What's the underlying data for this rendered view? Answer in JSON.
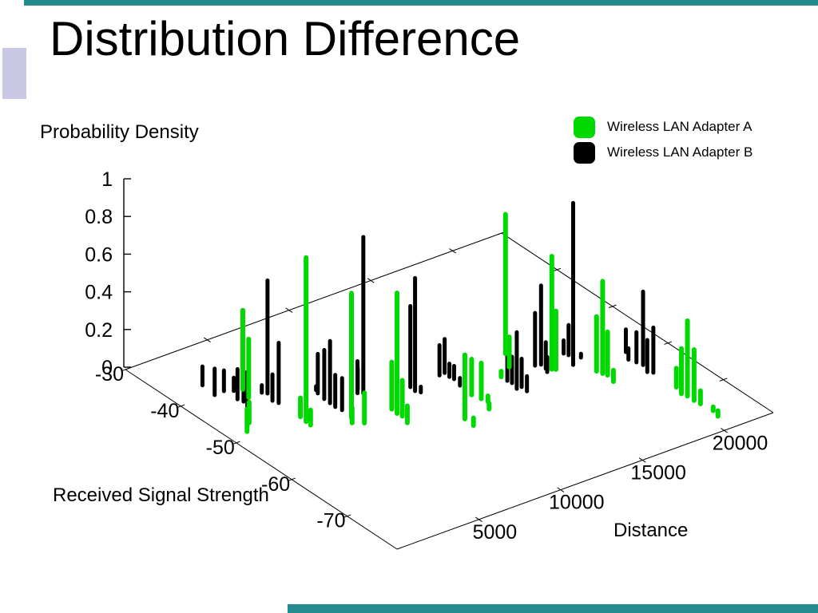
{
  "page": {
    "title": "Distribution Difference"
  },
  "theme": {
    "background": "#ffffff",
    "teal_accent": "#238b8b",
    "lavender_accent": "#c9c9e5",
    "adapter_a_green": "#00d900",
    "adapter_b_black": "#000000",
    "axis_line": "#000000"
  },
  "legend": {
    "items": [
      {
        "label": "Wireless LAN Adapter A",
        "color": "#00d900"
      },
      {
        "label": "Wireless LAN Adapter B",
        "color": "#000000"
      }
    ]
  },
  "chart_data": {
    "type": "bar",
    "projection": "3d-impulses",
    "zlabel": "Probability Density",
    "xlabel": "Distance",
    "ylabel": "Received Signal Strength",
    "x_range": [
      0,
      23000
    ],
    "y_range": [
      -30,
      -79
    ],
    "z_range": [
      0,
      1
    ],
    "x_ticks": [
      5000,
      10000,
      15000,
      20000
    ],
    "y_ticks": [
      -30,
      -40,
      -50,
      -60,
      -70
    ],
    "z_ticks": [
      0,
      0.2,
      0.4,
      0.6,
      0.8,
      1
    ],
    "grid": false,
    "legend_position": "top-right",
    "series": [
      {
        "name": "Wireless LAN Adapter B",
        "color": "#000000",
        "points": [
          [
            2100,
            -37.7,
            0.1
          ],
          [
            2000,
            -40.2,
            0.14
          ],
          [
            2600,
            -40.1,
            0.11
          ],
          [
            3000,
            -40.7,
            0.07
          ],
          [
            2650,
            -42.4,
            0.16
          ],
          [
            2750,
            -43.2,
            0.16
          ],
          [
            2200,
            -45.5,
            0.22
          ],
          [
            4000,
            -42.8,
            0.04
          ],
          [
            4180,
            -43.3,
            0.6
          ],
          [
            3940,
            -44.9,
            0.14
          ],
          [
            4050,
            -45.7,
            0.32
          ],
          [
            6300,
            -45.8,
            0.02
          ],
          [
            6170,
            -46.5,
            0.21
          ],
          [
            6090,
            -47.9,
            0.26
          ],
          [
            6070,
            -49.0,
            0.33
          ],
          [
            6050,
            -50.0,
            0.17
          ],
          [
            6130,
            -51.0,
            0.17
          ],
          [
            7750,
            -49.0,
            0.17
          ],
          [
            8000,
            -48.3,
            0.11
          ],
          [
            7970,
            -49.4,
            0.83
          ],
          [
            10200,
            -51.3,
            0.43
          ],
          [
            10150,
            -52.3,
            0.6
          ],
          [
            10300,
            -52.9,
            0.03
          ],
          [
            12050,
            -51.1,
            0.16
          ],
          [
            12400,
            -51.0,
            0.18
          ],
          [
            12350,
            -52.0,
            0.07
          ],
          [
            12400,
            -52.7,
            0.07
          ],
          [
            12250,
            -54.2,
            0.04
          ],
          [
            14400,
            -56.4,
            0.14
          ],
          [
            14450,
            -57.1,
            0.14
          ],
          [
            14300,
            -58.4,
            0.3
          ],
          [
            14600,
            -58.4,
            0.15
          ],
          [
            14550,
            -59.5,
            0.08
          ],
          [
            16400,
            -55.5,
            0.28
          ],
          [
            16700,
            -55.7,
            0.42
          ],
          [
            16650,
            -56.7,
            0.14
          ],
          [
            16500,
            -57.4,
            0.08
          ],
          [
            18250,
            -55.2,
            0.07
          ],
          [
            18350,
            -55.8,
            0.16
          ],
          [
            17950,
            -57.8,
            0.86
          ],
          [
            18700,
            -57.0,
            0.02
          ],
          [
            20800,
            -58.9,
            0.12
          ],
          [
            20450,
            -60.4,
            0.06
          ],
          [
            20600,
            -61.4,
            0.16
          ],
          [
            20700,
            -62.3,
            0.39
          ],
          [
            20450,
            -63.8,
            0.17
          ],
          [
            20650,
            -64.3,
            0.24
          ]
        ]
      },
      {
        "name": "Wireless LAN Adapter A",
        "color": "#00d900",
        "points": [
          [
            3450,
            -41.0,
            0.42
          ],
          [
            3200,
            -42.8,
            0.31
          ],
          [
            1700,
            -47.3,
            0.11
          ],
          [
            1100,
            -48.7,
            0.12
          ],
          [
            4090,
            -49.5,
            0.1
          ],
          [
            4030,
            -50.7,
            0.87
          ],
          [
            4000,
            -51.6,
            0.08
          ],
          [
            6060,
            -52.9,
            0.66
          ],
          [
            5760,
            -53.9,
            0.08
          ],
          [
            6240,
            -54.7,
            0.16
          ],
          [
            8150,
            -54.0,
            0.25
          ],
          [
            8100,
            -55.1,
            0.64
          ],
          [
            8150,
            -55.9,
            0.19
          ],
          [
            7950,
            -57.4,
            0.09
          ],
          [
            10450,
            -60.4,
            0.34
          ],
          [
            12150,
            -56.6,
            0.19
          ],
          [
            12300,
            -57.9,
            0.19
          ],
          [
            12400,
            -58.8,
            0.03
          ],
          [
            10400,
            -62.1,
            0.04
          ],
          [
            12000,
            -60.2,
            0.03
          ],
          [
            14400,
            -55.3,
            0.03
          ],
          [
            15950,
            -51.5,
            0.74
          ],
          [
            15300,
            -54.1,
            0.16
          ],
          [
            16850,
            -57.2,
            0.6
          ],
          [
            17000,
            -57.5,
            0.31
          ],
          [
            18500,
            -60.4,
            0.29
          ],
          [
            18600,
            -61.2,
            0.49
          ],
          [
            18700,
            -61.8,
            0.23
          ],
          [
            18550,
            -63.3,
            0.06
          ],
          [
            20700,
            -68.3,
            0.1
          ],
          [
            20500,
            -69.8,
            0.24
          ],
          [
            20600,
            -70.6,
            0.4
          ],
          [
            20600,
            -71.8,
            0.27
          ],
          [
            20650,
            -72.8,
            0.07
          ],
          [
            20750,
            -74.8,
            0.02
          ],
          [
            20600,
            -76.1,
            0.03
          ]
        ]
      }
    ]
  }
}
